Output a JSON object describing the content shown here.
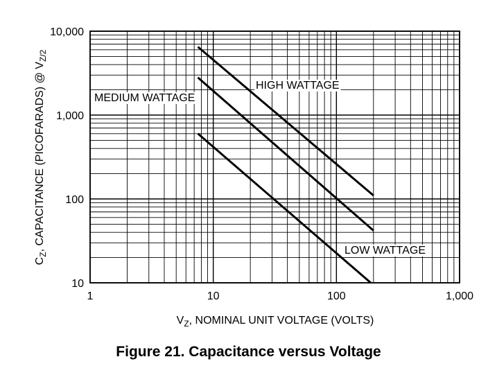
{
  "caption": "Figure 21. Capacitance versus Voltage",
  "chart_data": {
    "type": "line",
    "x_scale": "log",
    "y_scale": "log",
    "xlim": [
      1,
      1000
    ],
    "ylim": [
      10,
      10000
    ],
    "grid": true,
    "xlabel": {
      "main": "V",
      "sub": "Z",
      "rest": ", NOMINAL UNIT VOLTAGE (VOLTS)"
    },
    "ylabel": {
      "c": "C",
      "c_sub": "Z",
      "mid": ", CAPACITANCE (PICOFARADS) @ V",
      "v_sub": "Z",
      "tail": "/2"
    },
    "x_ticks": [
      {
        "value": 1,
        "label": "1"
      },
      {
        "value": 10,
        "label": "10"
      },
      {
        "value": 100,
        "label": "100"
      },
      {
        "value": 1000,
        "label": "1,000"
      }
    ],
    "y_ticks": [
      {
        "value": 10,
        "label": "10"
      },
      {
        "value": 100,
        "label": "100"
      },
      {
        "value": 1000,
        "label": "1,000"
      },
      {
        "value": 10000,
        "label": "10,000"
      }
    ],
    "series": [
      {
        "name": "HIGH WATTAGE",
        "points": [
          [
            7.5,
            6500
          ],
          [
            200,
            110
          ]
        ]
      },
      {
        "name": "MEDIUM WATTAGE",
        "points": [
          [
            7.5,
            2800
          ],
          [
            200,
            42
          ]
        ]
      },
      {
        "name": "LOW WATTAGE",
        "points": [
          [
            7.5,
            600
          ],
          [
            190,
            10
          ]
        ]
      }
    ]
  }
}
